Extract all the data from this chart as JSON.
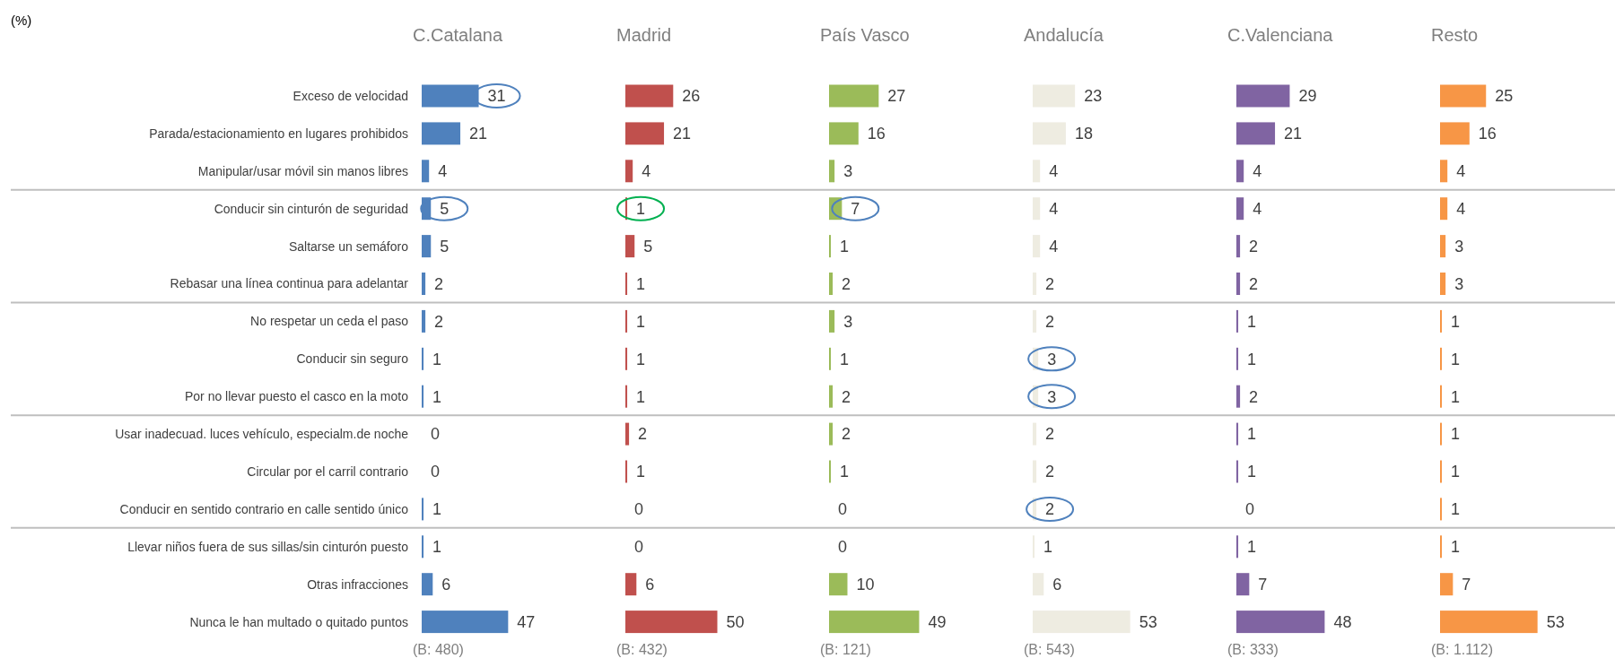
{
  "chart_data": [
    {
      "type": "bar",
      "orientation": "horizontal",
      "title": "C.Catalana",
      "categories": [
        "Exceso de velocidad",
        "Parada/estacionamiento en lugares prohibidos",
        "Manipular/usar móvil sin manos libres",
        "Conducir sin cinturón de seguridad",
        "Saltarse un semáforo",
        "Rebasar una línea continua para adelantar",
        "No respetar un ceda el paso",
        "Conducir sin seguro",
        "Por no llevar puesto el casco en la moto",
        "Usar inadecuad. luces vehículo, especialm.de noche",
        "Circular por el carril contrario",
        "Conducir en sentido contrario en calle sentido único",
        "Llevar niños fuera de sus sillas/sin cinturón puesto",
        "Otras infracciones",
        "Nunca le han multado o quitado puntos"
      ],
      "values": [
        31,
        21,
        4,
        5,
        5,
        2,
        2,
        1,
        1,
        0,
        0,
        1,
        1,
        6,
        47
      ],
      "color": "#4f81bd",
      "tick_labels": "y",
      "data_labels": true,
      "annotations": [
        "(%)",
        "(B: 480)"
      ]
    },
    {
      "type": "bar",
      "orientation": "horizontal",
      "title": "Madrid",
      "categories": [
        null,
        null,
        null,
        null,
        null,
        null,
        null,
        null,
        null,
        null,
        null,
        null,
        null,
        null,
        null
      ],
      "values": [
        26,
        21,
        4,
        1,
        5,
        1,
        1,
        1,
        1,
        2,
        1,
        0,
        0,
        6,
        50
      ],
      "color": "#c0504d",
      "tick_labels": false,
      "data_labels": true,
      "annotations": [
        "(B: 432)"
      ]
    },
    {
      "type": "bar",
      "orientation": "horizontal",
      "title": "País Vasco",
      "categories": [
        null,
        null,
        null,
        null,
        null,
        null,
        null,
        null,
        null,
        null,
        null,
        null,
        null,
        null,
        null
      ],
      "values": [
        27,
        16,
        3,
        7,
        1,
        2,
        3,
        1,
        2,
        2,
        1,
        0,
        0,
        10,
        49
      ],
      "color": "#9bbb59",
      "tick_labels": false,
      "data_labels": true,
      "annotations": [
        "(B: 121)"
      ]
    },
    {
      "type": "bar",
      "orientation": "horizontal",
      "title": "Andalucía",
      "categories": [
        null,
        null,
        null,
        null,
        null,
        null,
        null,
        null,
        null,
        null,
        null,
        null,
        null,
        null,
        null
      ],
      "values": [
        23,
        18,
        4,
        4,
        4,
        2,
        2,
        3,
        3,
        2,
        2,
        2,
        1,
        6,
        53
      ],
      "color": "#eeece1",
      "tick_labels": false,
      "data_labels": true,
      "annotations": [
        "(B: 543)"
      ]
    },
    {
      "type": "bar",
      "orientation": "horizontal",
      "title": "C.Valenciana",
      "categories": [
        null,
        null,
        null,
        null,
        null,
        null,
        null,
        null,
        null,
        null,
        null,
        null,
        null,
        null,
        null
      ],
      "values": [
        29,
        21,
        4,
        4,
        2,
        2,
        1,
        1,
        2,
        1,
        1,
        0,
        1,
        7,
        48
      ],
      "color": "#8064a2",
      "tick_labels": false,
      "data_labels": true,
      "annotations": [
        "(B: 333)"
      ]
    },
    {
      "type": "bar",
      "orientation": "horizontal",
      "title": "Resto",
      "categories": [
        null,
        null,
        null,
        null,
        null,
        null,
        null,
        null,
        null,
        null,
        null,
        null,
        null,
        null,
        null
      ],
      "values": [
        25,
        16,
        4,
        4,
        3,
        3,
        1,
        1,
        1,
        1,
        1,
        1,
        1,
        7,
        53
      ],
      "color": "#f79646",
      "tick_labels": false,
      "data_labels": true,
      "annotations": [
        "(B: 1.112)"
      ]
    }
  ]
}
